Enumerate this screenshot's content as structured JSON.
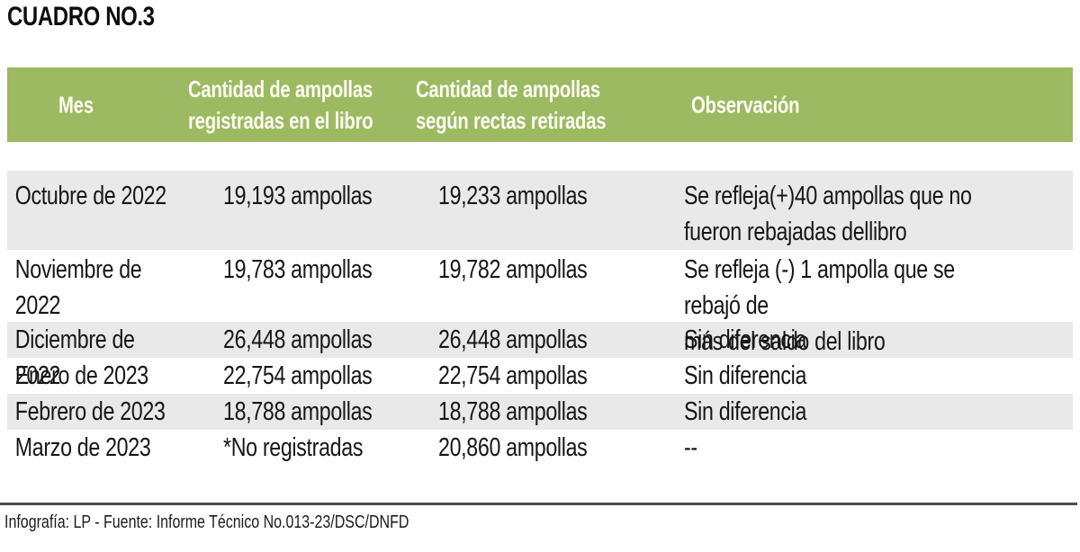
{
  "chart_data": {
    "type": "table",
    "title": "CUADRO NO.3",
    "columns": [
      "Mes",
      "Cantidad de ampollas\nregistradas en el libro",
      "Cantidad de ampollas\nsegún rectas retiradas",
      "Observación"
    ],
    "rows": [
      [
        "Octubre de 2022",
        "19,193 ampollas",
        "19,233 ampollas",
        "Se refleja(+)40 ampollas que no\nfueron rebajadas dellibro"
      ],
      [
        "Noviembre de 2022",
        "19,783 ampollas",
        "19,782 ampollas",
        "Se refleja (-) 1 ampolla que se rebajó de\nmás del saldo del libro"
      ],
      [
        "Diciembre de 2022",
        "26,448 ampollas",
        "26,448 ampollas",
        "Sin diferencia"
      ],
      [
        "Enero de 2023",
        "22,754 ampollas",
        "22,754 ampollas",
        "Sin diferencia"
      ],
      [
        "Febrero de 2023",
        "18,788 ampollas",
        "18,788 ampollas",
        "Sin diferencia"
      ],
      [
        "Marzo de 2023",
        "*No registradas",
        "20,860 ampollas",
        "--"
      ]
    ],
    "caption": "Infografía: LP - Fuente: Informe Técnico No.013-23/DSC/DNFD",
    "layout": {
      "header_background": "#9cba61",
      "stripe_background": "#e9e9e9",
      "header_text_color": "#fdfcf3",
      "body_text_color": "#161616",
      "divider_color": "#4c4c4c",
      "grid": "off",
      "stripe_pattern": "odd rows gray, even rows white"
    }
  }
}
